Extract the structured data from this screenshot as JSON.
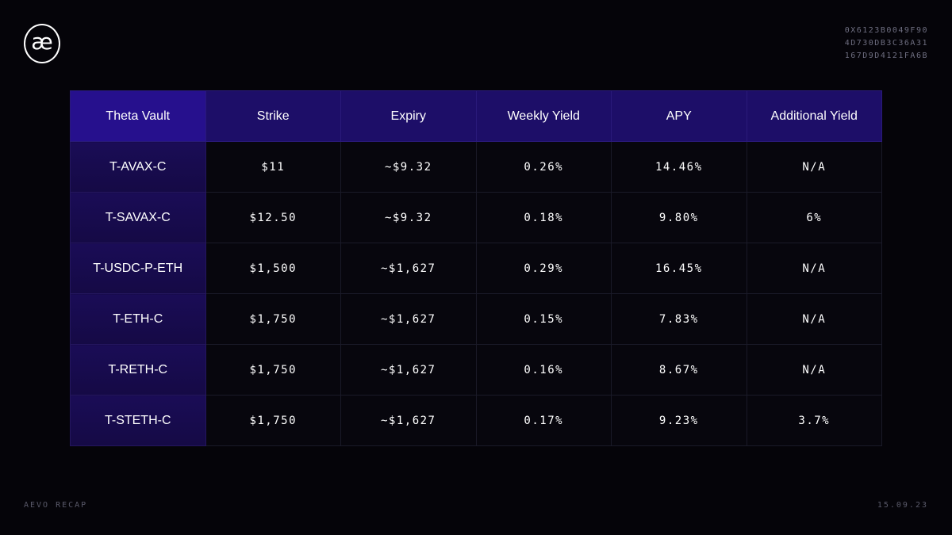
{
  "brand": {
    "logo_glyph": "æ",
    "hash_lines": [
      "0X6123B0049F90",
      "4D730DB3C36A31",
      "167D9D4121FA6B"
    ]
  },
  "footer": {
    "left": "AEVO RECAP",
    "right": "15.09.23"
  },
  "table": {
    "columns": [
      "Theta Vault",
      "Strike",
      "Expiry",
      "Weekly Yield",
      "APY",
      "Additional Yield"
    ],
    "rows": [
      [
        "T-AVAX-C",
        "$11",
        "~$9.32",
        "0.26%",
        "14.46%",
        "N/A"
      ],
      [
        "T-SAVAX-C",
        "$12.50",
        "~$9.32",
        "0.18%",
        "9.80%",
        "6%"
      ],
      [
        "T-USDC-P-ETH",
        "$1,500",
        "~$1,627",
        "0.29%",
        "16.45%",
        "N/A"
      ],
      [
        "T-ETH-C",
        "$1,750",
        "~$1,627",
        "0.15%",
        "7.83%",
        "N/A"
      ],
      [
        "T-RETH-C",
        "$1,750",
        "~$1,627",
        "0.16%",
        "8.67%",
        "N/A"
      ],
      [
        "T-STETH-C",
        "$1,750",
        "~$1,627",
        "0.17%",
        "9.23%",
        "3.7%"
      ]
    ]
  },
  "colors": {
    "background": "#050409",
    "header": "#1d0e68",
    "first_column": "#1a0c56"
  }
}
